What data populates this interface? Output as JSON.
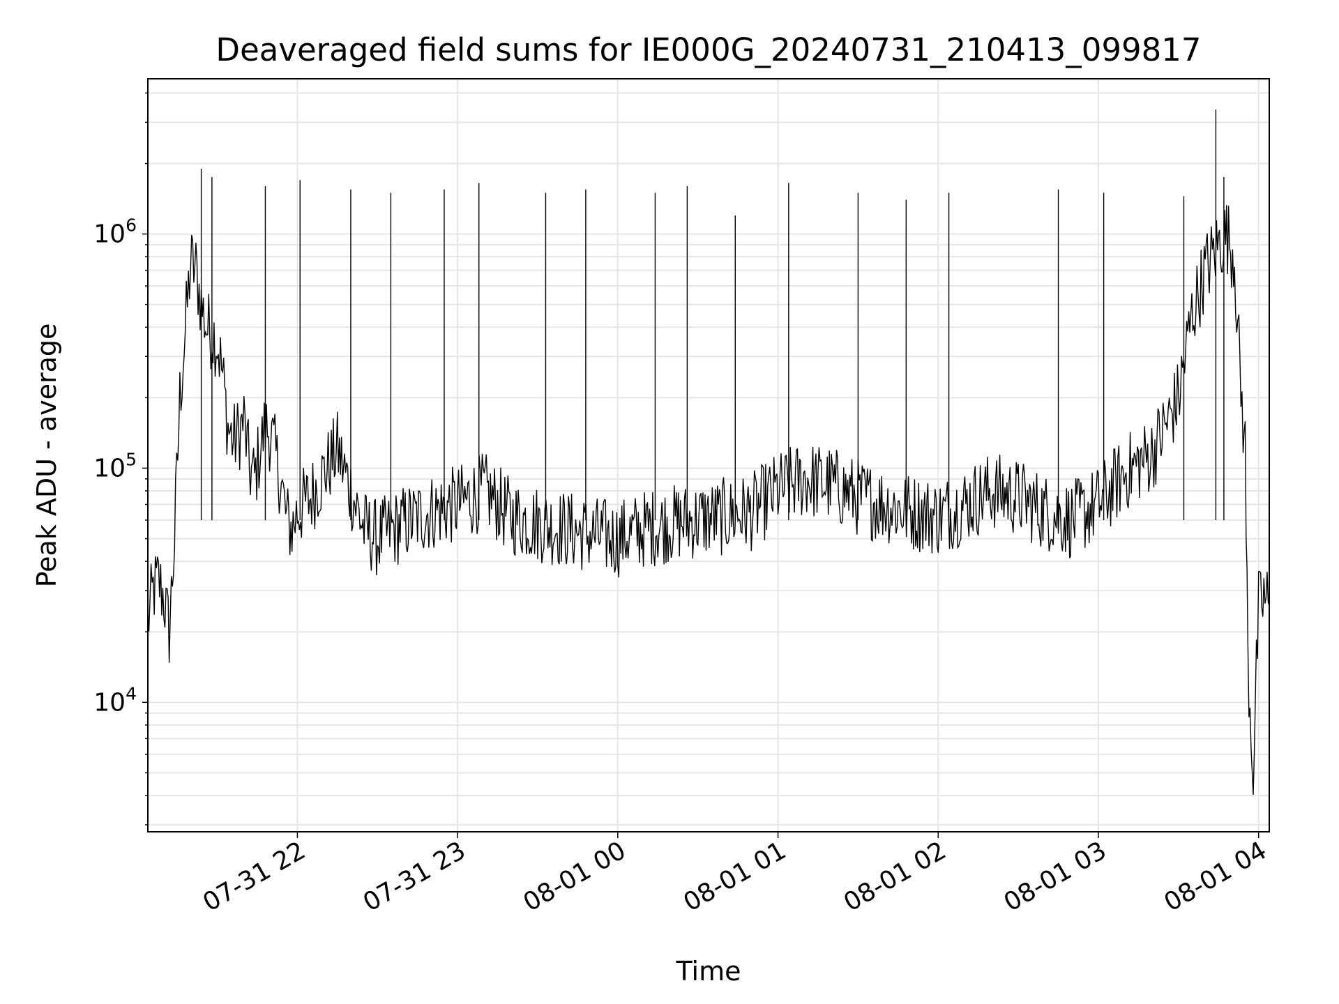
{
  "chart_data": {
    "type": "line",
    "title": "Deaveraged field sums for IE000G_20240731_210413_099817",
    "xlabel": "Time",
    "ylabel": "Peak ADU - average",
    "y_scale": "log",
    "ylim": [
      2800,
      4600000
    ],
    "xlim": [
      "2024-07-31 21:04",
      "2024-08-01 04:04"
    ],
    "grid": true,
    "legend": "none",
    "line_color": "#000000",
    "grid_color": "#e6e6e6",
    "x_ticks": [
      {
        "value": "2024-07-31 22:00",
        "label": "07-31 22"
      },
      {
        "value": "2024-07-31 23:00",
        "label": "07-31 23"
      },
      {
        "value": "2024-08-01 00:00",
        "label": "08-01 00"
      },
      {
        "value": "2024-08-01 01:00",
        "label": "08-01 01"
      },
      {
        "value": "2024-08-01 02:00",
        "label": "08-01 02"
      },
      {
        "value": "2024-08-01 03:00",
        "label": "08-01 03"
      },
      {
        "value": "2024-08-01 04:00",
        "label": "08-01 04"
      }
    ],
    "y_ticks": [
      {
        "value": 10000,
        "base": "10",
        "exp": "4"
      },
      {
        "value": 100000,
        "base": "10",
        "exp": "5"
      },
      {
        "value": 1000000,
        "base": "10",
        "exp": "6"
      }
    ],
    "series": [
      {
        "x": [
          "2024-07-31 21:04",
          "2024-07-31 21:06",
          "2024-07-31 21:08",
          "2024-07-31 21:10",
          "2024-07-31 21:12",
          "2024-07-31 21:14",
          "2024-07-31 21:16",
          "2024-07-31 21:18",
          "2024-07-31 21:20",
          "2024-07-31 21:22",
          "2024-07-31 21:24",
          "2024-07-31 21:26",
          "2024-07-31 21:28",
          "2024-07-31 21:30",
          "2024-07-31 21:32",
          "2024-07-31 21:34",
          "2024-07-31 21:36",
          "2024-07-31 21:38",
          "2024-07-31 21:40",
          "2024-07-31 21:42",
          "2024-07-31 21:44",
          "2024-07-31 21:46",
          "2024-07-31 21:48",
          "2024-07-31 21:50",
          "2024-07-31 21:52",
          "2024-07-31 21:54",
          "2024-07-31 21:56",
          "2024-07-31 21:58",
          "2024-07-31 22:00",
          "2024-07-31 22:05",
          "2024-07-31 22:10",
          "2024-07-31 22:15",
          "2024-07-31 22:20",
          "2024-07-31 22:25",
          "2024-07-31 22:30",
          "2024-07-31 22:40",
          "2024-07-31 22:50",
          "2024-07-31 23:00",
          "2024-07-31 23:10",
          "2024-07-31 23:20",
          "2024-07-31 23:30",
          "2024-07-31 23:40",
          "2024-07-31 23:50",
          "2024-08-01 00:00",
          "2024-08-01 00:10",
          "2024-08-01 00:20",
          "2024-08-01 00:30",
          "2024-08-01 00:40",
          "2024-08-01 00:50",
          "2024-08-01 01:00",
          "2024-08-01 01:10",
          "2024-08-01 01:20",
          "2024-08-01 01:30",
          "2024-08-01 01:40",
          "2024-08-01 01:50",
          "2024-08-01 02:00",
          "2024-08-01 02:10",
          "2024-08-01 02:20",
          "2024-08-01 02:30",
          "2024-08-01 02:40",
          "2024-08-01 02:50",
          "2024-08-01 03:00",
          "2024-08-01 03:10",
          "2024-08-01 03:20",
          "2024-08-01 03:25",
          "2024-08-01 03:30",
          "2024-08-01 03:35",
          "2024-08-01 03:40",
          "2024-08-01 03:45",
          "2024-08-01 03:48",
          "2024-08-01 03:51",
          "2024-08-01 03:53",
          "2024-08-01 03:55",
          "2024-08-01 03:56",
          "2024-08-01 03:58",
          "2024-08-01 04:00",
          "2024-08-01 04:02",
          "2024-08-01 04:04"
        ],
        "y": [
          22000,
          30000,
          33000,
          28000,
          20000,
          50000,
          200000,
          380000,
          750000,
          700000,
          500000,
          400000,
          380000,
          350000,
          250000,
          150000,
          130000,
          140000,
          160000,
          100000,
          90000,
          120000,
          150000,
          140000,
          110000,
          85000,
          60000,
          55000,
          65000,
          75000,
          95000,
          120000,
          80000,
          55000,
          50000,
          58000,
          65000,
          70000,
          80000,
          62000,
          58000,
          55000,
          52000,
          50000,
          55000,
          58000,
          60000,
          62000,
          65000,
          80000,
          90000,
          85000,
          75000,
          70000,
          65000,
          62000,
          70000,
          80000,
          75000,
          65000,
          60000,
          70000,
          95000,
          115000,
          150000,
          200000,
          450000,
          700000,
          900000,
          1000000,
          800000,
          250000,
          120000,
          15000,
          5000,
          25000,
          28000,
          26000
        ]
      }
    ],
    "spikes": [
      {
        "x": "2024-07-31 21:24",
        "y": 1900000
      },
      {
        "x": "2024-07-31 21:28",
        "y": 1750000
      },
      {
        "x": "2024-07-31 21:48",
        "y": 1600000
      },
      {
        "x": "2024-07-31 22:01",
        "y": 1700000
      },
      {
        "x": "2024-07-31 22:20",
        "y": 1550000
      },
      {
        "x": "2024-07-31 22:35",
        "y": 1500000
      },
      {
        "x": "2024-07-31 22:55",
        "y": 1550000
      },
      {
        "x": "2024-07-31 23:08",
        "y": 1650000
      },
      {
        "x": "2024-07-31 23:33",
        "y": 1500000
      },
      {
        "x": "2024-07-31 23:48",
        "y": 1550000
      },
      {
        "x": "2024-08-01 00:14",
        "y": 1500000
      },
      {
        "x": "2024-08-01 00:26",
        "y": 1600000
      },
      {
        "x": "2024-08-01 00:44",
        "y": 1200000
      },
      {
        "x": "2024-08-01 01:04",
        "y": 1650000
      },
      {
        "x": "2024-08-01 01:30",
        "y": 1500000
      },
      {
        "x": "2024-08-01 01:48",
        "y": 1400000
      },
      {
        "x": "2024-08-01 02:04",
        "y": 1500000
      },
      {
        "x": "2024-08-01 02:45",
        "y": 1550000
      },
      {
        "x": "2024-08-01 03:02",
        "y": 1500000
      },
      {
        "x": "2024-08-01 03:32",
        "y": 1450000
      },
      {
        "x": "2024-08-01 03:44",
        "y": 3400000
      },
      {
        "x": "2024-08-01 03:47",
        "y": 1750000
      }
    ]
  }
}
